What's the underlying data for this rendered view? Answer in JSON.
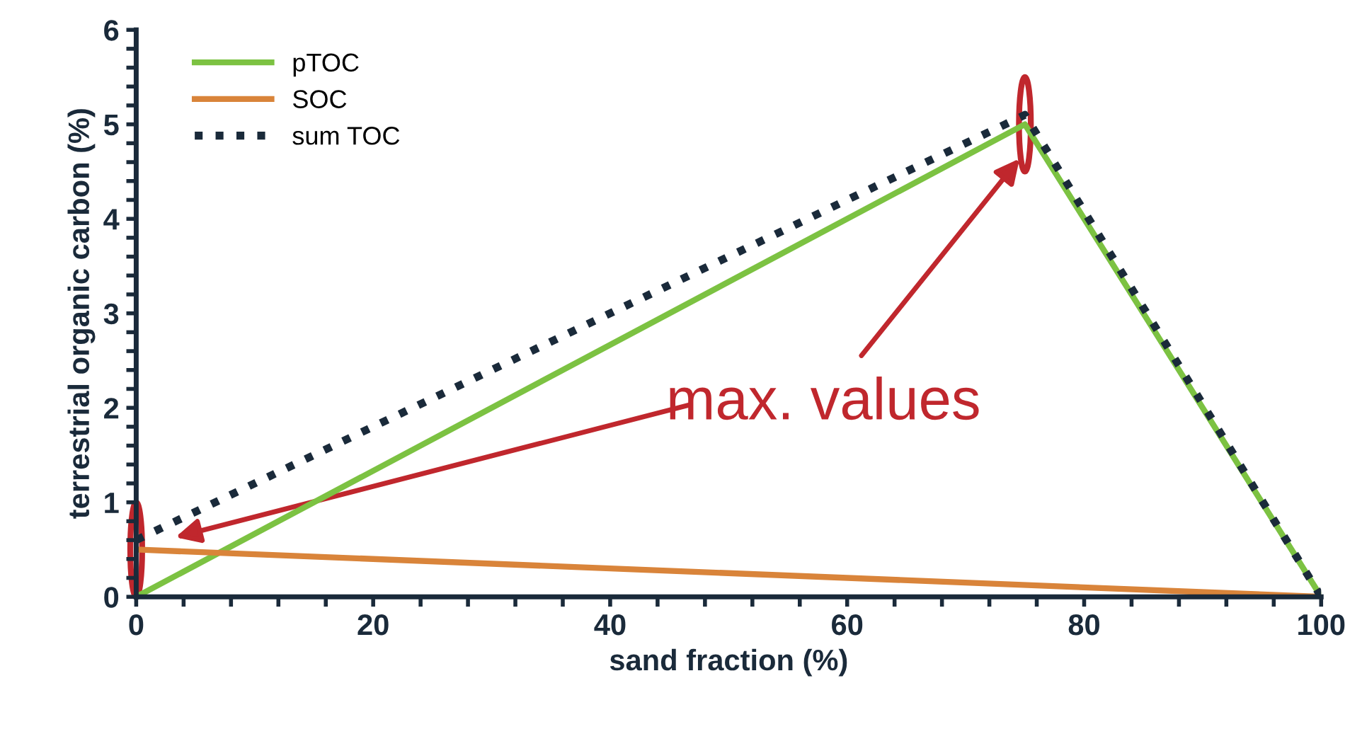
{
  "chart_data": {
    "type": "line",
    "xlabel": "sand fraction (%)",
    "ylabel": "terrestrial organic carbon (%)",
    "xlim": [
      0,
      100
    ],
    "ylim": [
      0,
      6
    ],
    "xticks": [
      0,
      {
        "value": 4,
        "label": null
      },
      {
        "value": 8,
        "label": null
      },
      {
        "value": 12,
        "label": null
      },
      {
        "value": 16,
        "label": null
      },
      20,
      {
        "value": 24,
        "label": null
      },
      {
        "value": 28,
        "label": null
      },
      {
        "value": 32,
        "label": null
      },
      {
        "value": 36,
        "label": null
      },
      40,
      {
        "value": 44,
        "label": null
      },
      {
        "value": 48,
        "label": null
      },
      {
        "value": 52,
        "label": null
      },
      {
        "value": 56,
        "label": null
      },
      60,
      {
        "value": 64,
        "label": null
      },
      {
        "value": 68,
        "label": null
      },
      {
        "value": 72,
        "label": null
      },
      {
        "value": 76,
        "label": null
      },
      80,
      {
        "value": 84,
        "label": null
      },
      {
        "value": 88,
        "label": null
      },
      {
        "value": 92,
        "label": null
      },
      {
        "value": 96,
        "label": null
      },
      100
    ],
    "yticks": [
      0,
      {
        "value": 0.2,
        "label": null
      },
      {
        "value": 0.4,
        "label": null
      },
      {
        "value": 0.6,
        "label": null
      },
      {
        "value": 0.8,
        "label": null
      },
      1,
      {
        "value": 1.2,
        "label": null
      },
      {
        "value": 1.4,
        "label": null
      },
      {
        "value": 1.6,
        "label": null
      },
      {
        "value": 1.8,
        "label": null
      },
      2,
      {
        "value": 2.2,
        "label": null
      },
      {
        "value": 2.4,
        "label": null
      },
      {
        "value": 2.6,
        "label": null
      },
      {
        "value": 2.8,
        "label": null
      },
      3,
      {
        "value": 3.2,
        "label": null
      },
      {
        "value": 3.4,
        "label": null
      },
      {
        "value": 3.6,
        "label": null
      },
      {
        "value": 3.8,
        "label": null
      },
      4,
      {
        "value": 4.2,
        "label": null
      },
      {
        "value": 4.4,
        "label": null
      },
      {
        "value": 4.6,
        "label": null
      },
      {
        "value": 4.8,
        "label": null
      },
      5,
      {
        "value": 5.2,
        "label": null
      },
      {
        "value": 5.4,
        "label": null
      },
      {
        "value": 5.6,
        "label": null
      },
      {
        "value": 5.8,
        "label": null
      },
      6
    ],
    "grid": false,
    "legend": "top left",
    "marker": "none",
    "series": [
      {
        "name": "pTOC",
        "color": "#7cc242",
        "x": [
          0,
          75,
          100
        ],
        "values": [
          0,
          5,
          0
        ],
        "line_style": "solid"
      },
      {
        "name": "SOC",
        "color": "#d9843a",
        "x": [
          0,
          100
        ],
        "values": [
          0.5,
          0
        ],
        "line_style": "solid"
      },
      {
        "name": "sum TOC",
        "color": "#1a2a3a",
        "x": [
          0,
          75,
          100
        ],
        "values": [
          0.6,
          5.1,
          0
        ],
        "line_style": "dotted"
      }
    ],
    "annotations": [
      "max. values"
    ]
  }
}
